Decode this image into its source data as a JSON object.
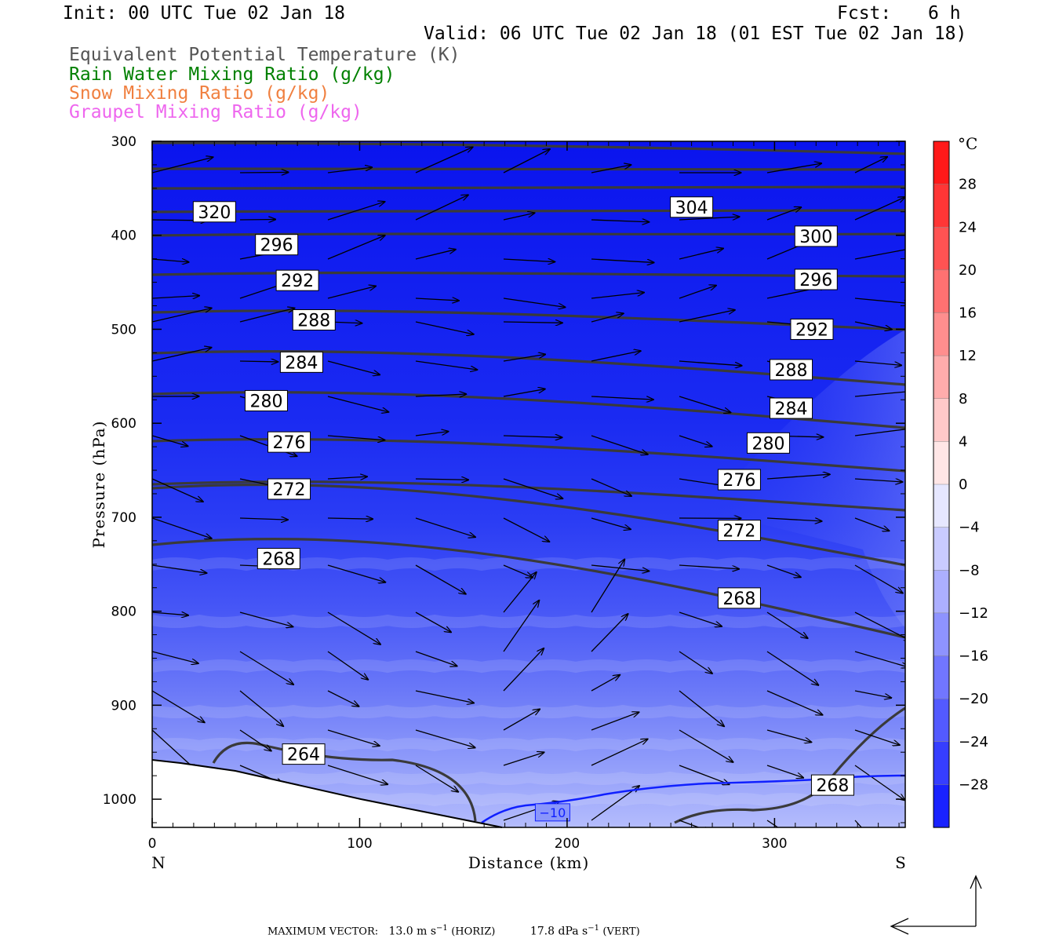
{
  "header": {
    "init": "Init: 00 UTC Tue 02 Jan 18",
    "fcst_label": "Fcst:",
    "fcst_value": "6 h",
    "valid": "Valid: 06 UTC Tue 02 Jan 18 (01 EST Tue 02 Jan 18)"
  },
  "fields": [
    {
      "label": "Equivalent Potential Temperature (K)",
      "color": "#555555"
    },
    {
      "label": "Rain Water Mixing Ratio (g/kg)",
      "color": "#008000"
    },
    {
      "label": "Snow Mixing Ratio (g/kg)",
      "color": "#f08040"
    },
    {
      "label": "Graupel Mixing Ratio (g/kg)",
      "color": "#ee66ee"
    }
  ],
  "chart_data": {
    "type": "cross-section",
    "xlabel": "Distance (km)",
    "ylabel": "Pressure (hPa)",
    "x_ticks": [
      0,
      100,
      200,
      300
    ],
    "y_ticks": [
      300,
      400,
      500,
      600,
      700,
      800,
      900,
      1000
    ],
    "xlim": [
      0,
      363
    ],
    "ylim": [
      300,
      1030
    ],
    "left_end_label": "N",
    "right_end_label": "S",
    "colorbar": {
      "unit": "°C",
      "tick_labels": [
        "28",
        "24",
        "20",
        "16",
        "12",
        "8",
        "4",
        "0",
        "−4",
        "−8",
        "−12",
        "−16",
        "−20",
        "−24",
        "−28"
      ],
      "range": [
        -32,
        32
      ]
    },
    "theta_e_contours": [
      {
        "value": 320,
        "label": "320",
        "at": [
          30,
          375
        ]
      },
      {
        "value": 304,
        "label": "304",
        "at": [
          260,
          370
        ]
      },
      {
        "value": 300,
        "label": "300",
        "at": [
          320,
          401
        ]
      },
      {
        "value": 296,
        "label": "296",
        "at": [
          60,
          410
        ]
      },
      {
        "value": 296,
        "label": "296",
        "at": [
          320,
          447
        ]
      },
      {
        "value": 292,
        "label": "292",
        "at": [
          70,
          448
        ]
      },
      {
        "value": 292,
        "label": "292",
        "at": [
          318,
          500
        ]
      },
      {
        "value": 288,
        "label": "288",
        "at": [
          78,
          490
        ]
      },
      {
        "value": 288,
        "label": "288",
        "at": [
          308,
          543
        ]
      },
      {
        "value": 284,
        "label": "284",
        "at": [
          72,
          535
        ]
      },
      {
        "value": 284,
        "label": "284",
        "at": [
          308,
          584
        ]
      },
      {
        "value": 280,
        "label": "280",
        "at": [
          55,
          576
        ]
      },
      {
        "value": 280,
        "label": "280",
        "at": [
          297,
          621
        ]
      },
      {
        "value": 276,
        "label": "276",
        "at": [
          66,
          620
        ]
      },
      {
        "value": 276,
        "label": "276",
        "at": [
          283,
          660
        ]
      },
      {
        "value": 272,
        "label": "272",
        "at": [
          66,
          670
        ]
      },
      {
        "value": 272,
        "label": "272",
        "at": [
          283,
          714
        ]
      },
      {
        "value": 268,
        "label": "268",
        "at": [
          61,
          744
        ]
      },
      {
        "value": 268,
        "label": "268",
        "at": [
          283,
          786
        ]
      },
      {
        "value": 268,
        "label": "268",
        "at": [
          328,
          985
        ]
      },
      {
        "value": 264,
        "label": "264",
        "at": [
          73,
          952
        ]
      }
    ],
    "temperature_contour": {
      "value": -10,
      "label": "−10",
      "at": [
        193,
        1014
      ]
    }
  },
  "max_vector": {
    "label": "MAXIMUM VECTOR:",
    "horiz_value": "13.0",
    "horiz_unit": "m s",
    "horiz_exp": "−1",
    "horiz_tag": "(HORIZ)",
    "vert_value": "17.8",
    "vert_unit": "dPa s",
    "vert_exp": "−1",
    "vert_tag": "(VERT)"
  }
}
